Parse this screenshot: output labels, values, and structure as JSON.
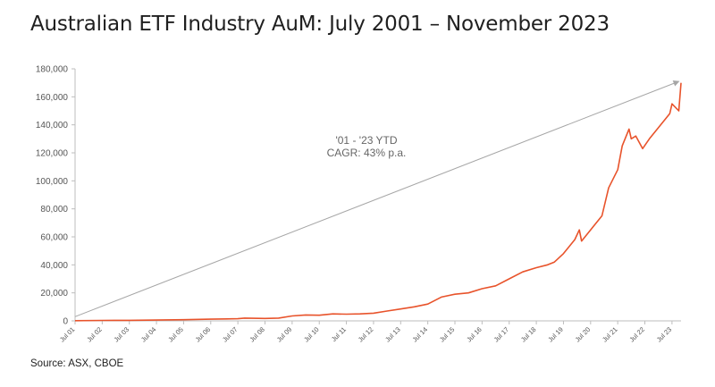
{
  "title": "Australian ETF Industry AuM: July 2001 – November 2023",
  "source": "Source: ASX, CBOE",
  "annotation": [
    "'01 - '23 YTD",
    "CAGR: 43% p.a."
  ],
  "colors": {
    "series": "#e8532b",
    "trend": "#a6a6a6",
    "axis": "#bdbdbd",
    "text": "#1f1f1f"
  },
  "chart_data": {
    "type": "line",
    "title": "Australian ETF Industry AuM: July 2001 – November 2023",
    "xlabel": "",
    "ylabel": "",
    "ylim": [
      0,
      180000
    ],
    "yticks": [
      0,
      20000,
      40000,
      60000,
      80000,
      100000,
      120000,
      140000,
      160000,
      180000
    ],
    "ytick_labels": [
      "0",
      "20,000",
      "40,000",
      "60,000",
      "80,000",
      "100,000",
      "120,000",
      "140,000",
      "160,000",
      "180,000"
    ],
    "xtick_labels": [
      "Jul 01",
      "Jul 02",
      "Jul 03",
      "Jul 04",
      "Jul 05",
      "Jul 06",
      "Jul 07",
      "Jul 08",
      "Jul 09",
      "Jul 10",
      "Jul 11",
      "Jul 12",
      "Jul 13",
      "Jul 14",
      "Jul 15",
      "Jul 16",
      "Jul 17",
      "Jul 18",
      "Jul 19",
      "Jul 20",
      "Jul 21",
      "Jul 22",
      "Jul 23"
    ],
    "grid": false,
    "series": [
      {
        "x": [
          "2001-07",
          "2002-07",
          "2003-07",
          "2004-07",
          "2005-07",
          "2006-07",
          "2007-07",
          "2007-10",
          "2008-07",
          "2009-01",
          "2009-07",
          "2010-01",
          "2010-07",
          "2011-01",
          "2011-07",
          "2012-01",
          "2012-07",
          "2013-01",
          "2013-07",
          "2014-01",
          "2014-07",
          "2015-01",
          "2015-07",
          "2016-01",
          "2016-07",
          "2017-01",
          "2017-07",
          "2018-01",
          "2018-07",
          "2018-12",
          "2019-03",
          "2019-07",
          "2019-12",
          "2020-02",
          "2020-03",
          "2020-07",
          "2020-12",
          "2021-03",
          "2021-07",
          "2021-09",
          "2021-12",
          "2022-01",
          "2022-03",
          "2022-06",
          "2022-09",
          "2022-12",
          "2023-03",
          "2023-06",
          "2023-07",
          "2023-10",
          "2023-11"
        ],
        "values": [
          100,
          300,
          400,
          600,
          800,
          1200,
          1500,
          2000,
          1700,
          2000,
          3500,
          4200,
          4000,
          5000,
          4800,
          5000,
          5500,
          7000,
          8500,
          10000,
          12000,
          17000,
          19000,
          20000,
          23000,
          25000,
          30000,
          35000,
          38000,
          40000,
          42000,
          48000,
          58000,
          65000,
          57000,
          65000,
          75000,
          95000,
          108000,
          125000,
          137000,
          130000,
          132000,
          123000,
          130000,
          136000,
          142000,
          148000,
          155000,
          150000,
          170000
        ]
      }
    ],
    "trend_line": {
      "x": [
        "2001-07",
        "2023-10"
      ],
      "values": [
        3000,
        171000
      ]
    }
  }
}
